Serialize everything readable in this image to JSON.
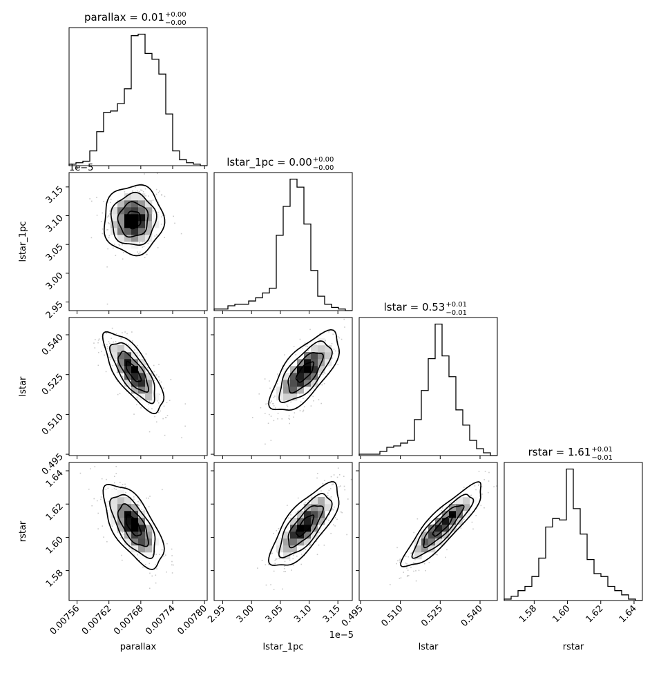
{
  "chart_data": {
    "type": "corner",
    "variables": [
      {
        "name": "parallax",
        "axis_label": "parallax",
        "title_prefix": "parallax = ",
        "median": "0.01",
        "err_plus": "+0.00",
        "err_minus": "−0.00",
        "range": [
          0.007545,
          0.007805
        ],
        "ticks": [
          0.00756,
          0.00762,
          0.00768,
          0.00774,
          0.0078
        ],
        "tick_labels": [
          "0.00756",
          "0.00762",
          "0.00768",
          "0.00774",
          "0.00780"
        ],
        "offset_text": "",
        "histogram": {
          "edges_start": 0.007545,
          "bin_width": 1.3e-05,
          "counts": [
            1,
            2,
            3,
            10,
            23,
            36,
            37,
            42,
            52,
            88,
            89,
            76,
            72,
            62,
            35,
            10,
            4,
            2,
            1,
            0
          ]
        }
      },
      {
        "name": "lstar_1pc",
        "axis_label": "lstar_1pc",
        "title_prefix": "lstar_1pc = ",
        "median": "0.00",
        "err_plus": "+0.00",
        "err_minus": "−0.00",
        "range": [
          2.935,
          3.175
        ],
        "ticks": [
          2.95,
          3.0,
          3.05,
          3.1,
          3.15
        ],
        "tick_labels": [
          "2.95",
          "3.00",
          "3.05",
          "3.10",
          "3.15"
        ],
        "offset_text": "1e−5",
        "histogram": {
          "edges_start": 2.935,
          "bin_width": 0.012,
          "counts": [
            1,
            1,
            3,
            4,
            4,
            6,
            8,
            11,
            14,
            47,
            65,
            82,
            77,
            54,
            25,
            9,
            4,
            2,
            1,
            0
          ]
        }
      },
      {
        "name": "lstar",
        "axis_label": "lstar",
        "title_prefix": "lstar = ",
        "median": "0.53",
        "err_plus": "+0.01",
        "err_minus": "−0.01",
        "range": [
          0.4945,
          0.5465
        ],
        "ticks": [
          0.495,
          0.51,
          0.525,
          0.54
        ],
        "tick_labels": [
          "0.495",
          "0.510",
          "0.525",
          "0.540"
        ],
        "offset_text": "",
        "histogram": {
          "edges_start": 0.4945,
          "bin_width": 0.0026,
          "counts": [
            1,
            1,
            1,
            3,
            6,
            7,
            9,
            11,
            26,
            47,
            70,
            95,
            72,
            57,
            33,
            22,
            11,
            5,
            2,
            0
          ]
        }
      },
      {
        "name": "rstar",
        "axis_label": "rstar",
        "title_prefix": "rstar = ",
        "median": "1.61",
        "err_plus": "+0.01",
        "err_minus": "−0.01",
        "range": [
          1.562,
          1.645
        ],
        "ticks": [
          1.58,
          1.6,
          1.62,
          1.64
        ],
        "tick_labels": [
          "1.58",
          "1.60",
          "1.62",
          "1.64"
        ],
        "offset_text": "",
        "histogram": {
          "edges_start": 1.562,
          "bin_width": 0.00415,
          "counts": [
            1,
            3,
            7,
            10,
            17,
            30,
            52,
            58,
            57,
            93,
            65,
            47,
            29,
            19,
            17,
            10,
            7,
            4,
            1,
            0
          ]
        }
      }
    ],
    "pairs": [
      {
        "x": "parallax",
        "y": "lstar_1pc",
        "mean": [
          0.007666,
          3.093
        ],
        "std": [
          2.8e-05,
          0.03
        ],
        "corr": 0.02
      },
      {
        "x": "parallax",
        "y": "lstar",
        "mean": [
          0.007666,
          0.526
        ],
        "std": [
          2.8e-05,
          0.0075
        ],
        "corr": -0.75
      },
      {
        "x": "parallax",
        "y": "rstar",
        "mean": [
          0.007666,
          1.607
        ],
        "std": [
          2.8e-05,
          0.0125
        ],
        "corr": -0.65
      },
      {
        "x": "lstar_1pc",
        "y": "lstar",
        "mean": [
          3.093,
          0.526
        ],
        "std": [
          0.03,
          0.0075
        ],
        "corr": 0.7
      },
      {
        "x": "lstar_1pc",
        "y": "rstar",
        "mean": [
          3.093,
          1.607
        ],
        "std": [
          0.03,
          0.0125
        ],
        "corr": 0.75
      },
      {
        "x": "lstar",
        "y": "rstar",
        "mean": [
          0.526,
          1.607
        ],
        "std": [
          0.0075,
          0.0125
        ],
        "corr": 0.88
      }
    ]
  }
}
